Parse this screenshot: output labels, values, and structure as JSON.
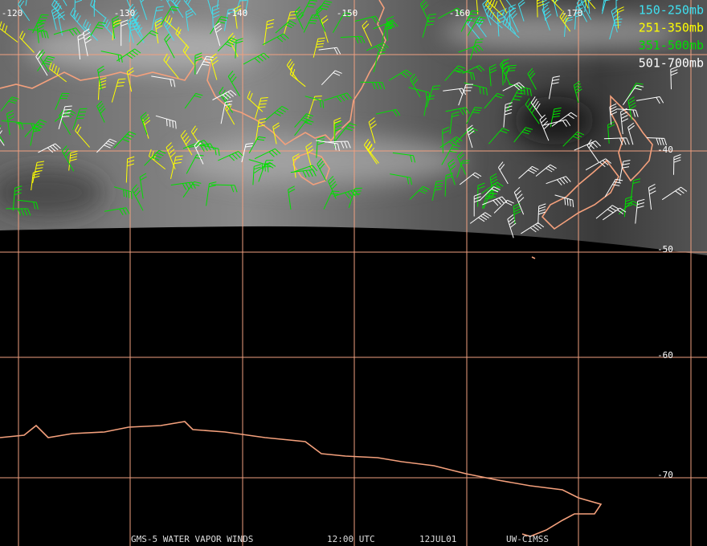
{
  "map": {
    "longitude_labels": [
      "-120",
      "-130",
      "-140",
      "-150",
      "-160",
      "-170"
    ],
    "latitude_labels": [
      "-40",
      "-50",
      "-60",
      "-70"
    ],
    "legend": [
      {
        "label": "150-250mb",
        "color": "#3fe0f0"
      },
      {
        "label": "251-350mb",
        "color": "#ffff00"
      },
      {
        "label": "351-500mb",
        "color": "#00e000"
      },
      {
        "label": "501-700mb",
        "color": "#ffffff"
      }
    ],
    "footer": [
      "GMS-5 WATER VAPOR WINDS",
      "12:00 UTC",
      "12JUL01",
      "UW-CIMSS"
    ]
  }
}
